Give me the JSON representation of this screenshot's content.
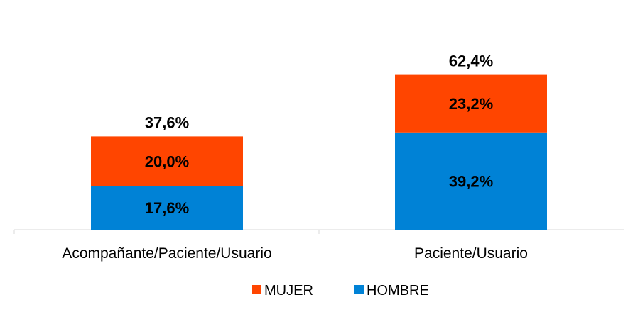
{
  "chart_data": {
    "type": "bar",
    "stacked": true,
    "categories": [
      "Acompañante/Paciente/Usuario",
      "Paciente/Usuario"
    ],
    "series": [
      {
        "name": "HOMBRE",
        "color": "#0082D6",
        "values": [
          17.6,
          39.2
        ],
        "labels": [
          "17,6%",
          "39,2%"
        ]
      },
      {
        "name": "MUJER",
        "color": "#FF4500",
        "values": [
          20.0,
          23.2
        ],
        "labels": [
          "20,0%",
          "23,2%"
        ]
      }
    ],
    "totals": [
      37.6,
      62.4
    ],
    "total_labels": [
      "37,6%",
      "62,4%"
    ],
    "ylim": [
      0,
      70
    ],
    "grid": false,
    "legend_placement": "bottom",
    "legend_order": [
      "MUJER",
      "HOMBRE"
    ]
  }
}
